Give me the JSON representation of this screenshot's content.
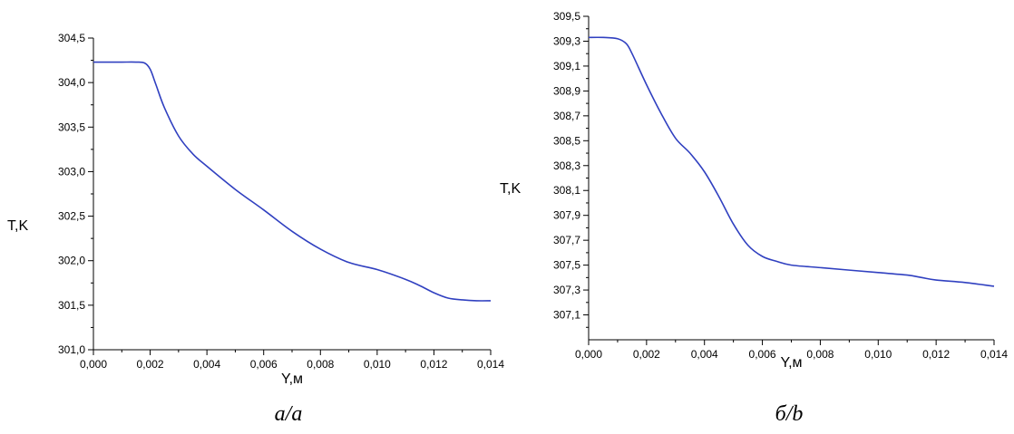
{
  "chart_data": [
    {
      "type": "line",
      "caption": "a/a",
      "xlabel": "Y,м",
      "ylabel": "T,K",
      "xlim": [
        0,
        0.014
      ],
      "ylim": [
        301.0,
        304.5
      ],
      "xticks": [
        "0,000",
        "0,002",
        "0,004",
        "0,006",
        "0,008",
        "0,010",
        "0,012",
        "0,014"
      ],
      "yticks": [
        "301,0",
        "301,5",
        "302,0",
        "302,5",
        "303,0",
        "303,5",
        "304,0",
        "304,5"
      ],
      "grid": false,
      "color": "#3040c0",
      "series": [
        {
          "x": [
            0,
            0.0005,
            0.001,
            0.0015,
            0.0018,
            0.002,
            0.0022,
            0.0025,
            0.003,
            0.0035,
            0.004,
            0.005,
            0.006,
            0.007,
            0.008,
            0.009,
            0.01,
            0.011,
            0.0115,
            0.012,
            0.0125,
            0.013,
            0.0135,
            0.014
          ],
          "y": [
            304.23,
            304.23,
            304.23,
            304.23,
            304.22,
            304.15,
            303.98,
            303.72,
            303.4,
            303.2,
            303.06,
            302.8,
            302.57,
            302.33,
            302.13,
            301.98,
            301.9,
            301.79,
            301.72,
            301.64,
            301.58,
            301.56,
            301.55,
            301.55
          ]
        }
      ]
    },
    {
      "type": "line",
      "caption": "б/b",
      "xlabel": "Y,м",
      "ylabel": "T,K",
      "xlim": [
        0,
        0.014
      ],
      "ylim": [
        306.9,
        309.5
      ],
      "xticks": [
        "0,000",
        "0,002",
        "0,004",
        "0,006",
        "0,008",
        "0,010",
        "0,012",
        "0,014"
      ],
      "yticks": [
        "307,1",
        "307,3",
        "307,5",
        "307,7",
        "307,9",
        "308,1",
        "308,3",
        "308,5",
        "308,7",
        "308,9",
        "309,1",
        "309,3",
        "309,5"
      ],
      "grid": false,
      "color": "#3040c0",
      "series": [
        {
          "x": [
            0,
            0.0005,
            0.001,
            0.0013,
            0.0015,
            0.002,
            0.0025,
            0.003,
            0.0035,
            0.004,
            0.0045,
            0.005,
            0.0055,
            0.006,
            0.0065,
            0.007,
            0.008,
            0.009,
            0.01,
            0.011,
            0.0115,
            0.012,
            0.013,
            0.014
          ],
          "y": [
            309.33,
            309.33,
            309.32,
            309.28,
            309.2,
            308.95,
            308.72,
            308.52,
            308.4,
            308.25,
            308.05,
            307.83,
            307.66,
            307.57,
            307.53,
            307.5,
            307.48,
            307.46,
            307.44,
            307.42,
            307.4,
            307.38,
            307.36,
            307.33
          ]
        }
      ]
    }
  ]
}
